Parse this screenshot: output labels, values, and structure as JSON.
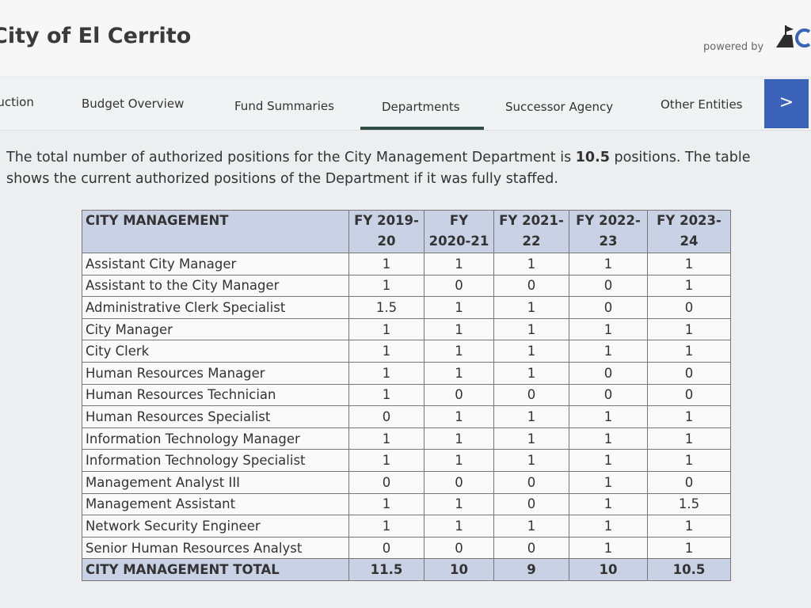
{
  "header": {
    "title": "City of El Cerrito",
    "powered_by": "powered by"
  },
  "nav": [
    "Introduction",
    "Budget Overview",
    "Fund Summaries",
    "Departments",
    "Successor Agency",
    "Other Entities"
  ],
  "intro": {
    "before": "The total number of authorized positions for the City Management Department is ",
    "bold": "10.5",
    "after": " positions. The table shows the current authorized positions of the Department if it was fully staffed."
  },
  "table": {
    "columns": [
      "CITY MANAGEMENT",
      "FY 2019-20",
      "FY 2020-21",
      "FY 2021-22",
      "FY 2022-23",
      "FY 2023-24"
    ],
    "rows": [
      [
        "Assistant City Manager",
        1,
        1,
        1,
        1,
        1
      ],
      [
        "Assistant to the City Manager",
        1,
        0,
        0,
        0,
        1
      ],
      [
        "Administrative Clerk Specialist",
        1.5,
        1,
        1,
        0,
        0
      ],
      [
        "City Manager",
        1,
        1,
        1,
        1,
        1
      ],
      [
        "City Clerk",
        1,
        1,
        1,
        1,
        1
      ],
      [
        "Human Resources Manager",
        1,
        1,
        1,
        0,
        0
      ],
      [
        "Human Resources Technician",
        1,
        0,
        0,
        0,
        0
      ],
      [
        "Human Resources Specialist",
        0,
        1,
        1,
        1,
        1
      ],
      [
        "Information Technology Manager",
        1,
        1,
        1,
        1,
        1
      ],
      [
        "Information Technology Specialist",
        1,
        1,
        1,
        1,
        1
      ],
      [
        "Management Analyst III",
        0,
        0,
        0,
        1,
        0
      ],
      [
        "Management Assistant",
        1,
        1,
        0,
        1,
        1.5
      ],
      [
        "Network Security Engineer",
        1,
        1,
        1,
        1,
        1
      ],
      [
        "Senior Human Resources Analyst",
        0,
        0,
        0,
        1,
        1
      ]
    ],
    "total": [
      "CITY MANAGEMENT TOTAL",
      11.5,
      10,
      9,
      10,
      10.5
    ]
  }
}
